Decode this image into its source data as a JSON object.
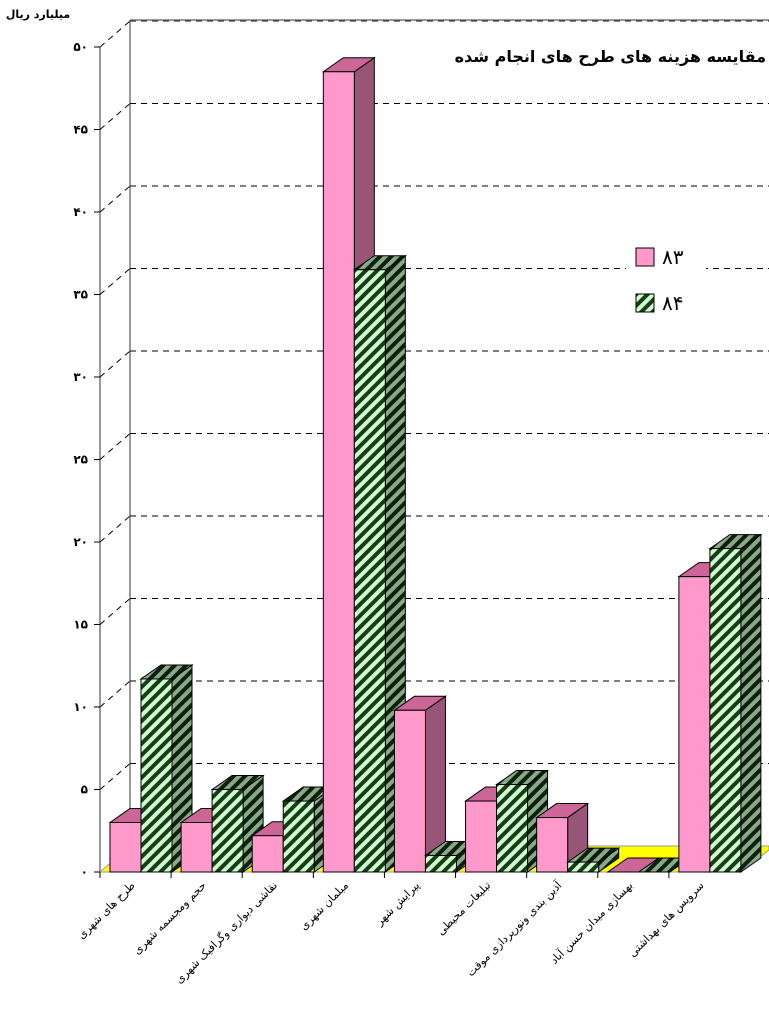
{
  "chart_data": {
    "type": "bar3d",
    "title": "مقایسه  هزینه های  طرح های انجام شده",
    "y_label": "میلیارد ریال",
    "categories": [
      "طرح های شهری",
      "حجم ومجسمه شهری",
      "نقاشی دیواری وگرافیک شهری",
      "مبلمان شهری",
      "پیرایش شهر",
      "تبلیغات محیطی",
      "آذین بندی ونورپردازی موقت",
      "بهسازی میدان حسن آباد",
      "سرویس های بهداشتی"
    ],
    "series": [
      {
        "name": "۸۳",
        "color": "#ff99cc",
        "hatch": false,
        "values": [
          3.0,
          3.0,
          2.2,
          48.5,
          9.8,
          4.3,
          3.3,
          0,
          17.9
        ]
      },
      {
        "name": "۸۴",
        "color": "#ccffcc",
        "hatch": true,
        "values": [
          11.7,
          5.0,
          4.3,
          36.5,
          1.0,
          5.3,
          0.6,
          0,
          19.6
        ]
      }
    ],
    "ylim": [
      0,
      50
    ],
    "yticks": [
      {
        "value": 0,
        "label": "۰"
      },
      {
        "value": 5,
        "label": "۵"
      },
      {
        "value": 10,
        "label": "۱۰"
      },
      {
        "value": 15,
        "label": "۱۵"
      },
      {
        "value": 20,
        "label": "۲۰"
      },
      {
        "value": 25,
        "label": "۲۵"
      },
      {
        "value": 30,
        "label": "۳۰"
      },
      {
        "value": 35,
        "label": "۳۵"
      },
      {
        "value": 40,
        "label": "۴۰"
      },
      {
        "value": 45,
        "label": "۴۵"
      },
      {
        "value": 50,
        "label": "۵۰"
      }
    ],
    "grid": true
  }
}
